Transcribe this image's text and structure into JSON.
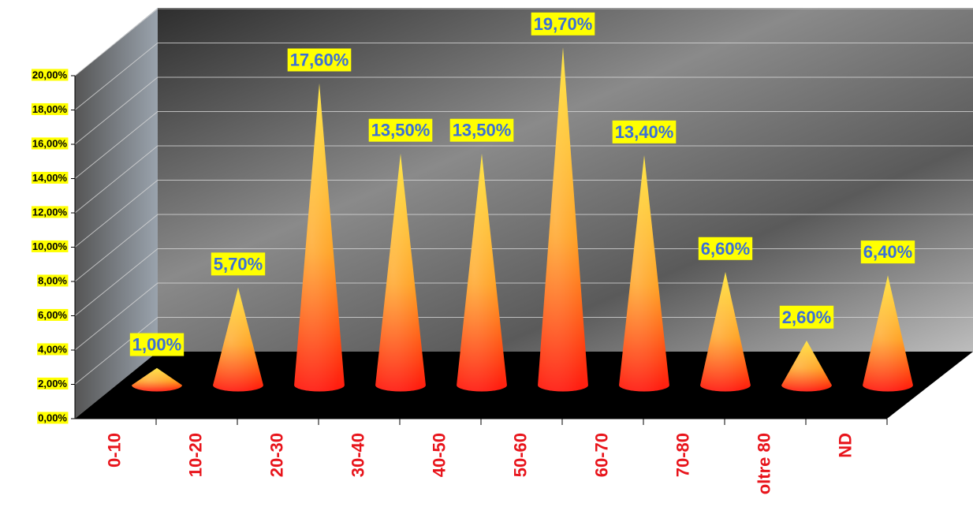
{
  "chart_data": {
    "type": "cone",
    "categories": [
      "0-10",
      "10-20",
      "20-30",
      "30-40",
      "40-50",
      "50-60",
      "60-70",
      "70-80",
      "oltre 80",
      "ND"
    ],
    "values": [
      1.0,
      5.7,
      17.6,
      13.5,
      13.5,
      19.7,
      13.4,
      6.6,
      2.6,
      6.4
    ],
    "value_labels": [
      "1,00%",
      "5,70%",
      "17,60%",
      "13,50%",
      "13,50%",
      "19,70%",
      "13,40%",
      "6,60%",
      "2,60%",
      "6,40%"
    ],
    "ylim": [
      0,
      20
    ],
    "yticks": [
      {
        "value": 0,
        "label": "0,00%"
      },
      {
        "value": 2,
        "label": "2,00%"
      },
      {
        "value": 4,
        "label": "4,00%"
      },
      {
        "value": 6,
        "label": "6,00%"
      },
      {
        "value": 8,
        "label": "8,00%"
      },
      {
        "value": 10,
        "label": "10,00%"
      },
      {
        "value": 12,
        "label": "12,00%"
      },
      {
        "value": 14,
        "label": "14,00%"
      },
      {
        "value": 16,
        "label": "16,00%"
      },
      {
        "value": 18,
        "label": "18,00%"
      },
      {
        "value": 20,
        "label": "20,00%"
      }
    ],
    "grid": true
  }
}
